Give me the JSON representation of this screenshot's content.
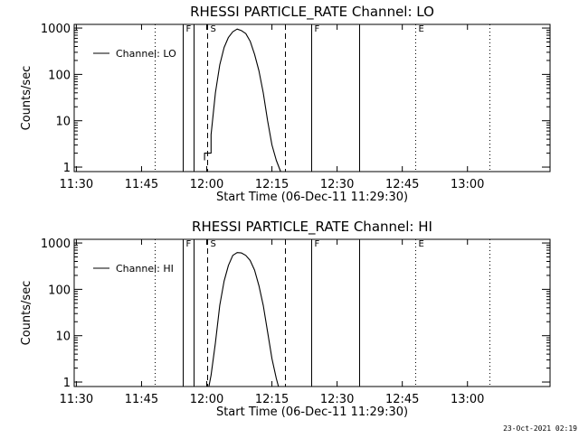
{
  "footer_timestamp": "23-Oct-2021 02:19",
  "colors": {
    "background": "#ffffff",
    "ink": "#000000"
  },
  "chart_data": [
    {
      "type": "line",
      "title": "RHESSI PARTICLE_RATE Channel: LO",
      "xlabel": "Start Time (06-Dec-11 11:29:30)",
      "ylabel": "Counts/sec",
      "yscale": "log",
      "ylim": [
        0.8,
        1200
      ],
      "xlim": [
        "11:29:30",
        "13:19:00"
      ],
      "x_ticks": [
        "11:30",
        "11:45",
        "12:00",
        "12:15",
        "12:30",
        "12:45",
        "13:00"
      ],
      "y_ticks": [
        "1",
        "10",
        "100",
        "1000"
      ],
      "legend": {
        "position": "top-left",
        "entries": [
          "Channel: LO"
        ]
      },
      "grid": false,
      "vlines": [
        {
          "time": "11:48:00",
          "style": "dotted",
          "label": ""
        },
        {
          "time": "11:54:30",
          "style": "solid",
          "label": "F"
        },
        {
          "time": "11:57:00",
          "style": "solid",
          "label": ""
        },
        {
          "time": "12:00:00",
          "style": "dashed",
          "label": "S"
        },
        {
          "time": "12:18:00",
          "style": "dashed",
          "label": ""
        },
        {
          "time": "12:24:00",
          "style": "solid",
          "label": "F"
        },
        {
          "time": "12:35:00",
          "style": "solid",
          "label": ""
        },
        {
          "time": "12:48:00",
          "style": "dotted",
          "label": "E"
        },
        {
          "time": "13:05:00",
          "style": "dotted",
          "label": ""
        }
      ],
      "series": [
        {
          "name": "",
          "x": [
            "11:59:30",
            "11:59:30",
            "12:01:00",
            "12:01:00",
            "12:02:00",
            "12:03:00",
            "12:04:00",
            "12:05:00",
            "12:06:00",
            "12:07:00",
            "12:08:00",
            "12:09:00",
            "12:10:00",
            "12:11:00",
            "12:12:00",
            "12:13:00",
            "12:14:00",
            "12:15:00",
            "12:16:00",
            "12:17:00"
          ],
          "y": [
            1.4,
            2.0,
            2.0,
            5,
            40,
            160,
            380,
            630,
            830,
            950,
            880,
            760,
            520,
            270,
            120,
            40,
            10,
            3.0,
            1.4,
            0.8
          ]
        }
      ]
    },
    {
      "type": "line",
      "title": "RHESSI PARTICLE_RATE Channel: HI",
      "xlabel": "Start Time (06-Dec-11 11:29:30)",
      "ylabel": "Counts/sec",
      "yscale": "log",
      "ylim": [
        0.8,
        1200
      ],
      "xlim": [
        "11:29:30",
        "13:19:00"
      ],
      "x_ticks": [
        "11:30",
        "11:45",
        "12:00",
        "12:15",
        "12:30",
        "12:45",
        "13:00"
      ],
      "y_ticks": [
        "1",
        "10",
        "100",
        "1000"
      ],
      "legend": {
        "position": "top-left",
        "entries": [
          "Channel: HI"
        ]
      },
      "grid": false,
      "vlines": [
        {
          "time": "11:48:00",
          "style": "dotted",
          "label": ""
        },
        {
          "time": "11:54:30",
          "style": "solid",
          "label": "F"
        },
        {
          "time": "11:57:00",
          "style": "solid",
          "label": ""
        },
        {
          "time": "12:00:00",
          "style": "dashed",
          "label": "S"
        },
        {
          "time": "12:18:00",
          "style": "dashed",
          "label": ""
        },
        {
          "time": "12:24:00",
          "style": "solid",
          "label": "F"
        },
        {
          "time": "12:35:00",
          "style": "solid",
          "label": ""
        },
        {
          "time": "12:48:00",
          "style": "dotted",
          "label": "E"
        },
        {
          "time": "13:05:00",
          "style": "dotted",
          "label": ""
        }
      ],
      "series": [
        {
          "name": "",
          "x": [
            "12:00:30",
            "12:01:00",
            "12:02:00",
            "12:03:00",
            "12:04:00",
            "12:05:00",
            "12:06:00",
            "12:07:00",
            "12:08:00",
            "12:09:00",
            "12:10:00",
            "12:11:00",
            "12:12:00",
            "12:13:00",
            "12:14:00",
            "12:15:00",
            "12:16:00",
            "12:16:30"
          ],
          "y": [
            0.8,
            1.4,
            7,
            45,
            150,
            330,
            540,
            620,
            610,
            540,
            420,
            260,
            120,
            45,
            12,
            3.2,
            1.2,
            0.8
          ]
        }
      ]
    }
  ]
}
